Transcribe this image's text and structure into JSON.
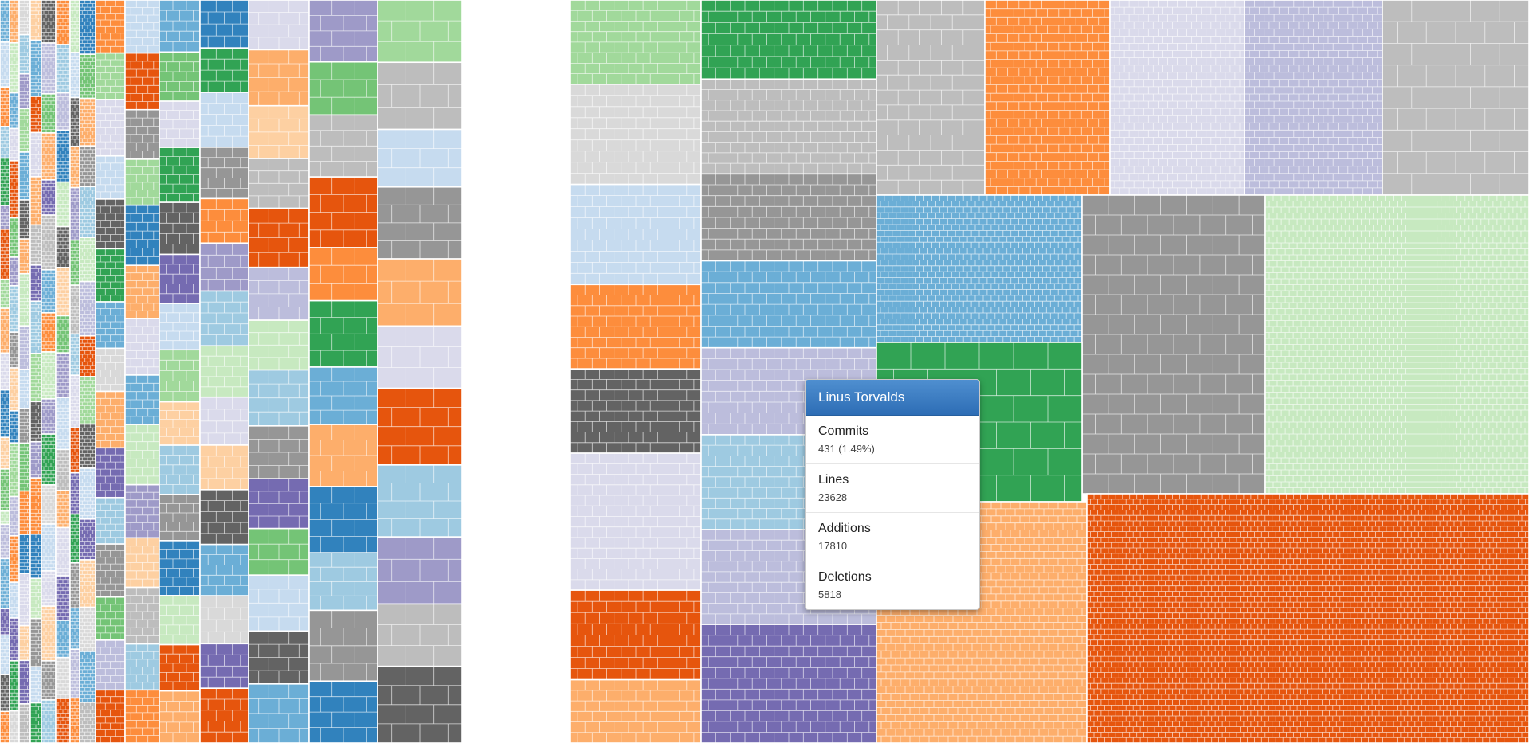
{
  "chart_data": {
    "type": "treemap",
    "title": "",
    "palette": [
      "#3182bd",
      "#6baed6",
      "#9ecae1",
      "#c6dbef",
      "#e6550d",
      "#fd8d3c",
      "#fdae6b",
      "#fdd0a2",
      "#31a354",
      "#74c476",
      "#a1d99b",
      "#c7e9c0",
      "#756bb1",
      "#9e9ac8",
      "#bcbddc",
      "#dadaeb",
      "#636363",
      "#969696",
      "#bdbdbd",
      "#d9d9d9"
    ],
    "columns": [
      {
        "blocks": [
          [
            1,
            16
          ],
          [
            3,
            17
          ],
          [
            5,
            15
          ],
          [
            2,
            12
          ],
          [
            8,
            18
          ],
          [
            13,
            9
          ],
          [
            4,
            19
          ],
          [
            10,
            11
          ],
          [
            6,
            17
          ],
          [
            15,
            14
          ],
          [
            0,
            18
          ],
          [
            7,
            12
          ],
          [
            9,
            16
          ],
          [
            11,
            5
          ],
          [
            14,
            13
          ],
          [
            1,
            19
          ],
          [
            12,
            10
          ],
          [
            3,
            15
          ],
          [
            16,
            14
          ],
          [
            5,
            12
          ]
        ]
      },
      {
        "blocks": [
          [
            6,
            12
          ],
          [
            11,
            14
          ],
          [
            1,
            10
          ],
          [
            15,
            9
          ],
          [
            4,
            16
          ],
          [
            9,
            11
          ],
          [
            13,
            8
          ],
          [
            2,
            13
          ],
          [
            17,
            10
          ],
          [
            7,
            12
          ],
          [
            0,
            9
          ],
          [
            10,
            15
          ],
          [
            14,
            11
          ],
          [
            5,
            13
          ],
          [
            3,
            10
          ],
          [
            12,
            12
          ],
          [
            8,
            14
          ],
          [
            19,
            9
          ]
        ]
      },
      {
        "blocks": [
          [
            19,
            8
          ],
          [
            2,
            9
          ],
          [
            13,
            8
          ],
          [
            10,
            10
          ],
          [
            1,
            11
          ],
          [
            16,
            9
          ],
          [
            6,
            8
          ],
          [
            11,
            12
          ],
          [
            14,
            10
          ],
          [
            3,
            9
          ],
          [
            17,
            8
          ],
          [
            9,
            11
          ],
          [
            5,
            10
          ],
          [
            0,
            9
          ],
          [
            15,
            12
          ],
          [
            7,
            8
          ],
          [
            12,
            10
          ],
          [
            18,
            9
          ]
        ]
      },
      {
        "blocks": [
          [
            7,
            10
          ],
          [
            1,
            14
          ],
          [
            4,
            9
          ],
          [
            15,
            11
          ],
          [
            6,
            12
          ],
          [
            18,
            10
          ],
          [
            12,
            9
          ],
          [
            2,
            13
          ],
          [
            10,
            12
          ],
          [
            16,
            10
          ],
          [
            13,
            9
          ],
          [
            5,
            14
          ],
          [
            0,
            11
          ],
          [
            11,
            10
          ],
          [
            17,
            12
          ],
          [
            3,
            9
          ],
          [
            8,
            10
          ]
        ]
      },
      {
        "blocks": [
          [
            16,
            11
          ],
          [
            14,
            13
          ],
          [
            9,
            10
          ],
          [
            6,
            12
          ],
          [
            12,
            9
          ],
          [
            18,
            14
          ],
          [
            1,
            11
          ],
          [
            5,
            10
          ],
          [
            11,
            12
          ],
          [
            13,
            9
          ],
          [
            8,
            13
          ],
          [
            19,
            10
          ],
          [
            3,
            12
          ],
          [
            15,
            9
          ],
          [
            7,
            14
          ],
          [
            17,
            10
          ],
          [
            2,
            11
          ]
        ]
      },
      {
        "blocks": [
          [
            5,
            12
          ],
          [
            2,
            13
          ],
          [
            14,
            10
          ],
          [
            0,
            14
          ],
          [
            11,
            12
          ],
          [
            16,
            11
          ],
          [
            7,
            13
          ],
          [
            9,
            10
          ],
          [
            13,
            12
          ],
          [
            3,
            14
          ],
          [
            18,
            11
          ],
          [
            6,
            10
          ],
          [
            15,
            13
          ],
          [
            12,
            12
          ],
          [
            1,
            10
          ],
          [
            19,
            11
          ],
          [
            4,
            12
          ]
        ]
      },
      {
        "blocks": [
          [
            11,
            14
          ],
          [
            3,
            12
          ],
          [
            16,
            13
          ],
          [
            6,
            11
          ],
          [
            13,
            14
          ],
          [
            9,
            12
          ],
          [
            18,
            13
          ],
          [
            2,
            11
          ],
          [
            15,
            14
          ],
          [
            4,
            12
          ],
          [
            12,
            11
          ],
          [
            8,
            13
          ],
          [
            17,
            12
          ],
          [
            1,
            11
          ],
          [
            14,
            13
          ],
          [
            5,
            12
          ]
        ]
      },
      {
        "blocks": [
          [
            0,
            16
          ],
          [
            9,
            13
          ],
          [
            6,
            14
          ],
          [
            17,
            12
          ],
          [
            2,
            15
          ],
          [
            11,
            13
          ],
          [
            14,
            16
          ],
          [
            4,
            12
          ],
          [
            10,
            14
          ],
          [
            16,
            13
          ],
          [
            3,
            15
          ],
          [
            12,
            12
          ],
          [
            7,
            14
          ],
          [
            19,
            13
          ],
          [
            1,
            15
          ],
          [
            18,
            12
          ]
        ]
      },
      {
        "blocks": [
          [
            5,
            16
          ],
          [
            10,
            14
          ],
          [
            15,
            17
          ],
          [
            3,
            13
          ],
          [
            16,
            15
          ],
          [
            8,
            16
          ],
          [
            1,
            14
          ],
          [
            19,
            13
          ],
          [
            6,
            17
          ],
          [
            12,
            15
          ],
          [
            2,
            14
          ],
          [
            17,
            16
          ],
          [
            9,
            13
          ],
          [
            14,
            15
          ],
          [
            4,
            16
          ]
        ]
      },
      {
        "blocks": [
          [
            3,
            15
          ],
          [
            4,
            16
          ],
          [
            17,
            14
          ],
          [
            10,
            13
          ],
          [
            0,
            17
          ],
          [
            6,
            15
          ],
          [
            15,
            16
          ],
          [
            1,
            14
          ],
          [
            11,
            17
          ],
          [
            13,
            15
          ],
          [
            7,
            14
          ],
          [
            18,
            16
          ],
          [
            2,
            13
          ],
          [
            5,
            15
          ]
        ]
      },
      {
        "blocks": [
          [
            1,
            18
          ],
          [
            9,
            17
          ],
          [
            15,
            16
          ],
          [
            8,
            19
          ],
          [
            16,
            18
          ],
          [
            12,
            17
          ],
          [
            3,
            16
          ],
          [
            10,
            18
          ],
          [
            7,
            15
          ],
          [
            2,
            17
          ],
          [
            17,
            16
          ],
          [
            0,
            19
          ],
          [
            11,
            17
          ],
          [
            4,
            16
          ],
          [
            6,
            18
          ]
        ]
      },
      {
        "blocks": [
          [
            0,
            14
          ],
          [
            8,
            13
          ],
          [
            3,
            16
          ],
          [
            17,
            15
          ],
          [
            5,
            13
          ],
          [
            13,
            14
          ],
          [
            2,
            16
          ],
          [
            11,
            15
          ],
          [
            15,
            14
          ],
          [
            7,
            13
          ],
          [
            16,
            16
          ],
          [
            1,
            15
          ],
          [
            19,
            14
          ],
          [
            12,
            13
          ],
          [
            4,
            16
          ]
        ]
      },
      {
        "blocks": [
          [
            15,
            16
          ],
          [
            6,
            18
          ],
          [
            7,
            17
          ],
          [
            18,
            16
          ],
          [
            4,
            19
          ],
          [
            14,
            17
          ],
          [
            11,
            16
          ],
          [
            2,
            18
          ],
          [
            17,
            17
          ],
          [
            12,
            16
          ],
          [
            9,
            15
          ],
          [
            3,
            18
          ],
          [
            16,
            17
          ],
          [
            1,
            19
          ]
        ]
      },
      {
        "blocks": [
          [
            13,
            14
          ],
          [
            9,
            12
          ],
          [
            18,
            14
          ],
          [
            4,
            16
          ],
          [
            5,
            12
          ],
          [
            8,
            15
          ],
          [
            1,
            13
          ],
          [
            6,
            14
          ],
          [
            0,
            15
          ],
          [
            2,
            13
          ],
          [
            17,
            16
          ],
          [
            0,
            14
          ]
        ]
      },
      {
        "blocks": [
          [
            10,
            13
          ],
          [
            18,
            14
          ],
          [
            3,
            12
          ],
          [
            17,
            15
          ],
          [
            6,
            14
          ],
          [
            15,
            13
          ],
          [
            4,
            16
          ],
          [
            2,
            15
          ],
          [
            13,
            14
          ],
          [
            18,
            13
          ],
          [
            16,
            16
          ]
        ]
      }
    ],
    "blocks_right": [
      [
        8,
        22
      ],
      [
        17,
        20
      ],
      [
        16,
        21
      ],
      [
        1,
        25
      ],
      [
        14,
        22
      ],
      [
        2,
        24
      ],
      [
        12,
        20
      ],
      [
        17,
        21
      ],
      [
        18,
        19
      ],
      [
        5,
        23
      ],
      [
        15,
        26
      ],
      [
        14,
        24
      ],
      [
        18,
        21
      ],
      [
        1,
        27
      ],
      [
        8,
        23
      ],
      [
        17,
        22
      ],
      [
        11,
        28
      ],
      [
        4,
        30
      ],
      [
        6,
        26
      ]
    ],
    "tooltip": {
      "title": "Linus Torvalds",
      "rows": [
        {
          "label": "Commits",
          "value": "431 (1.49%)"
        },
        {
          "label": "Lines",
          "value": "23628"
        },
        {
          "label": "Additions",
          "value": "17810"
        },
        {
          "label": "Deletions",
          "value": "5818"
        }
      ]
    }
  }
}
